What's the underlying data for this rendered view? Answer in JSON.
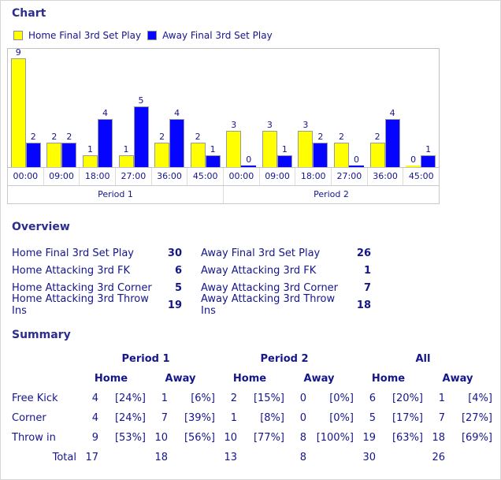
{
  "sections": {
    "chart_title": "Chart",
    "overview_title": "Overview",
    "summary_title": "Summary"
  },
  "colors": {
    "home": "#ffff00",
    "away": "#0505ff",
    "heading": "#2d2d8f",
    "text": "#15158c",
    "bar_border": "#9a9a9a",
    "grid_border": "#c9c9c9"
  },
  "chart_data": {
    "type": "bar",
    "title": "Chart",
    "legend": [
      {
        "label": "Home Final 3rd Set Play",
        "color": "#ffff00"
      },
      {
        "label": "Away Final 3rd Set Play",
        "color": "#0505ff"
      }
    ],
    "legend_position": "top",
    "ylim": [
      0,
      9
    ],
    "grid": false,
    "periods": [
      {
        "label": "Period 1",
        "categories": [
          "00:00",
          "09:00",
          "18:00",
          "27:00",
          "36:00",
          "45:00"
        ],
        "series": [
          {
            "name": "Home Final 3rd Set Play",
            "values": [
              9,
              2,
              1,
              1,
              2,
              2
            ]
          },
          {
            "name": "Away Final 3rd Set Play",
            "values": [
              2,
              2,
              4,
              5,
              4,
              1
            ]
          }
        ]
      },
      {
        "label": "Period 2",
        "categories": [
          "00:00",
          "09:00",
          "18:00",
          "27:00",
          "36:00",
          "45:00"
        ],
        "series": [
          {
            "name": "Home Final 3rd Set Play",
            "values": [
              3,
              3,
              3,
              2,
              2,
              0
            ]
          },
          {
            "name": "Away Final 3rd Set Play",
            "values": [
              0,
              1,
              2,
              0,
              4,
              1
            ]
          }
        ]
      }
    ]
  },
  "overview": {
    "rows": [
      {
        "left_label": "Home Final 3rd Set Play",
        "left_value": "30",
        "right_label": "Away Final 3rd Set Play",
        "right_value": "26"
      },
      {
        "left_label": "Home Attacking 3rd FK",
        "left_value": "6",
        "right_label": "Away Attacking 3rd FK",
        "right_value": "1"
      },
      {
        "left_label": "Home Attacking 3rd Corner",
        "left_value": "5",
        "right_label": "Away Attacking 3rd Corner",
        "right_value": "7"
      },
      {
        "left_label": "Home Attacking 3rd Throw Ins",
        "left_value": "19",
        "right_label": "Away Attacking 3rd Throw Ins",
        "right_value": "18"
      }
    ]
  },
  "summary": {
    "group_headers": [
      "Period 1",
      "Period 2",
      "All"
    ],
    "sub_headers": [
      "Home",
      "Away",
      "Home",
      "Away",
      "Home",
      "Away"
    ],
    "rows": [
      {
        "label": "Free Kick",
        "cells": [
          {
            "n": "4",
            "p": "[24%]"
          },
          {
            "n": "1",
            "p": "[6%]"
          },
          {
            "n": "2",
            "p": "[15%]"
          },
          {
            "n": "0",
            "p": "[0%]"
          },
          {
            "n": "6",
            "p": "[20%]"
          },
          {
            "n": "1",
            "p": "[4%]"
          }
        ]
      },
      {
        "label": "Corner",
        "cells": [
          {
            "n": "4",
            "p": "[24%]"
          },
          {
            "n": "7",
            "p": "[39%]"
          },
          {
            "n": "1",
            "p": "[8%]"
          },
          {
            "n": "0",
            "p": "[0%]"
          },
          {
            "n": "5",
            "p": "[17%]"
          },
          {
            "n": "7",
            "p": "[27%]"
          }
        ]
      },
      {
        "label": "Throw in",
        "cells": [
          {
            "n": "9",
            "p": "[53%]"
          },
          {
            "n": "10",
            "p": "[56%]"
          },
          {
            "n": "10",
            "p": "[77%]"
          },
          {
            "n": "8",
            "p": "[100%]"
          },
          {
            "n": "19",
            "p": "[63%]"
          },
          {
            "n": "18",
            "p": "[69%]"
          }
        ]
      }
    ],
    "total": {
      "label": "Total",
      "values": [
        "17",
        "18",
        "13",
        "8",
        "30",
        "26"
      ]
    }
  }
}
